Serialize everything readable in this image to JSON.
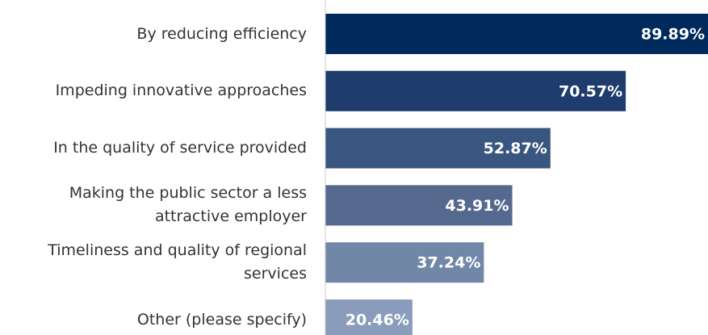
{
  "chart_data": {
    "type": "bar",
    "orientation": "horizontal",
    "categories": [
      "By reducing efficiency",
      "Impeding innovative approaches",
      "In the quality of service provided",
      "Making the public sector a less attractive employer",
      "Timeliness and quality of regional services",
      "Other (please specify)"
    ],
    "values": [
      89.89,
      70.57,
      52.87,
      43.91,
      37.24,
      20.46
    ],
    "value_labels": [
      "89.89%",
      "70.57%",
      "52.87%",
      "43.91%",
      "37.24%",
      "20.46%"
    ],
    "colors": [
      "#002a5c",
      "#1e3d6d",
      "#385680",
      "#55698f",
      "#7087a8",
      "#8a9cbb"
    ]
  }
}
